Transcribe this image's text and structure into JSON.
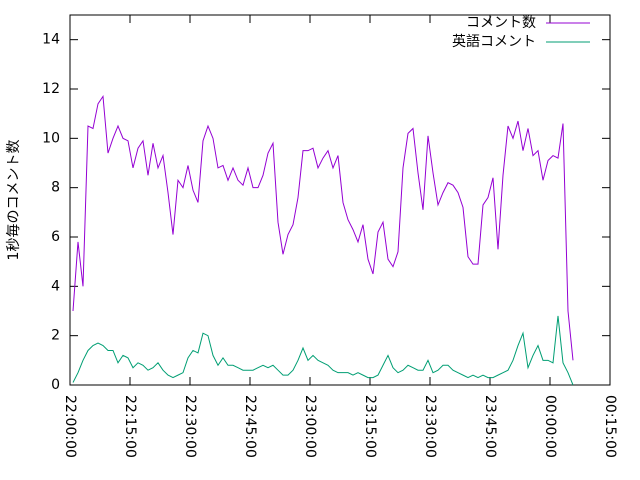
{
  "chart_data": {
    "type": "line",
    "y_label": "1秒毎のコメント数",
    "x": [
      "22:00:45",
      "22:02:00",
      "22:03:15",
      "22:04:30",
      "22:05:45",
      "22:07:00",
      "22:08:15",
      "22:09:30",
      "22:10:45",
      "22:12:00",
      "22:13:15",
      "22:14:30",
      "22:15:45",
      "22:17:00",
      "22:18:15",
      "22:19:30",
      "22:20:45",
      "22:22:00",
      "22:23:15",
      "22:24:30",
      "22:25:45",
      "22:27:00",
      "22:28:15",
      "22:29:30",
      "22:30:45",
      "22:32:00",
      "22:33:15",
      "22:34:30",
      "22:35:45",
      "22:37:00",
      "22:38:15",
      "22:39:30",
      "22:40:45",
      "22:42:00",
      "22:43:15",
      "22:44:30",
      "22:45:45",
      "22:47:00",
      "22:48:15",
      "22:49:30",
      "22:50:45",
      "22:52:00",
      "22:53:15",
      "22:54:30",
      "22:55:45",
      "22:57:00",
      "22:58:15",
      "22:59:30",
      "23:00:45",
      "23:02:00",
      "23:03:15",
      "23:04:30",
      "23:05:45",
      "23:07:00",
      "23:08:15",
      "23:09:30",
      "23:10:45",
      "23:12:00",
      "23:13:15",
      "23:14:30",
      "23:15:45",
      "23:17:00",
      "23:18:15",
      "23:19:30",
      "23:20:45",
      "23:22:00",
      "23:23:15",
      "23:24:30",
      "23:25:45",
      "23:27:00",
      "23:28:15",
      "23:29:30",
      "23:30:45",
      "23:32:00",
      "23:33:15",
      "23:34:30",
      "23:35:45",
      "23:37:00",
      "23:38:15",
      "23:39:30",
      "23:40:45",
      "23:42:00",
      "23:43:15",
      "23:44:30",
      "23:45:45",
      "23:47:00",
      "23:48:15",
      "23:49:30",
      "23:50:45",
      "23:52:00",
      "23:53:15",
      "23:54:30",
      "23:55:45",
      "23:57:00",
      "23:58:15",
      "23:59:30",
      "00:00:45",
      "00:02:00",
      "00:03:15",
      "00:04:30",
      "00:05:45"
    ],
    "series": [
      {
        "name": "コメント数",
        "color": "#9400d3",
        "values": [
          3.0,
          5.8,
          4.0,
          10.5,
          10.4,
          11.4,
          11.7,
          9.4,
          10.0,
          10.5,
          10.0,
          9.9,
          8.8,
          9.6,
          9.9,
          8.5,
          9.8,
          8.8,
          9.3,
          7.8,
          6.1,
          8.3,
          8.0,
          8.9,
          7.9,
          7.4,
          9.9,
          10.5,
          10.0,
          8.8,
          8.9,
          8.3,
          8.8,
          8.3,
          8.1,
          8.8,
          8.0,
          8.0,
          8.5,
          9.4,
          9.8,
          6.6,
          5.3,
          6.1,
          6.5,
          7.6,
          9.5,
          9.5,
          9.6,
          8.8,
          9.2,
          9.5,
          8.8,
          9.3,
          7.4,
          6.7,
          6.3,
          5.8,
          6.5,
          5.1,
          4.5,
          6.2,
          6.6,
          5.1,
          4.8,
          5.4,
          8.8,
          10.2,
          10.4,
          8.6,
          7.1,
          10.1,
          8.6,
          7.3,
          7.8,
          8.2,
          8.1,
          7.8,
          7.2,
          5.2,
          4.9,
          4.9,
          7.3,
          7.6,
          8.4,
          5.5,
          8.5,
          10.5,
          10.0,
          10.7,
          9.5,
          10.4,
          9.3,
          9.5,
          8.3,
          9.1,
          9.3,
          9.2,
          10.6,
          3.0,
          1.0
        ]
      },
      {
        "name": "英語コメント",
        "color": "#009e73",
        "values": [
          0.1,
          0.5,
          1.0,
          1.4,
          1.6,
          1.7,
          1.6,
          1.4,
          1.4,
          0.9,
          1.2,
          1.1,
          0.7,
          0.9,
          0.8,
          0.6,
          0.7,
          0.9,
          0.6,
          0.4,
          0.3,
          0.4,
          0.5,
          1.1,
          1.4,
          1.3,
          2.1,
          2.0,
          1.2,
          0.8,
          1.1,
          0.8,
          0.8,
          0.7,
          0.6,
          0.6,
          0.6,
          0.7,
          0.8,
          0.7,
          0.8,
          0.6,
          0.4,
          0.4,
          0.6,
          1.0,
          1.5,
          1.0,
          1.2,
          1.0,
          0.9,
          0.8,
          0.6,
          0.5,
          0.5,
          0.5,
          0.4,
          0.5,
          0.4,
          0.3,
          0.3,
          0.4,
          0.8,
          1.2,
          0.7,
          0.5,
          0.6,
          0.8,
          0.7,
          0.6,
          0.6,
          1.0,
          0.5,
          0.6,
          0.8,
          0.8,
          0.6,
          0.5,
          0.4,
          0.3,
          0.4,
          0.3,
          0.4,
          0.3,
          0.3,
          0.4,
          0.5,
          0.6,
          1.0,
          1.6,
          2.1,
          0.7,
          1.2,
          1.6,
          1.0,
          1.0,
          0.9,
          2.8,
          0.9,
          0.5,
          0.0
        ]
      }
    ],
    "xlim": [
      "22:00:00",
      "00:15:00"
    ],
    "xticks": [
      "22:00:00",
      "22:15:00",
      "22:30:00",
      "22:45:00",
      "23:00:00",
      "23:15:00",
      "23:30:00",
      "23:45:00",
      "00:00:00",
      "00:15:00"
    ],
    "ylim": [
      0,
      15
    ],
    "yticks": [
      0,
      2,
      4,
      6,
      8,
      10,
      12,
      14
    ],
    "legend": "top-right"
  }
}
